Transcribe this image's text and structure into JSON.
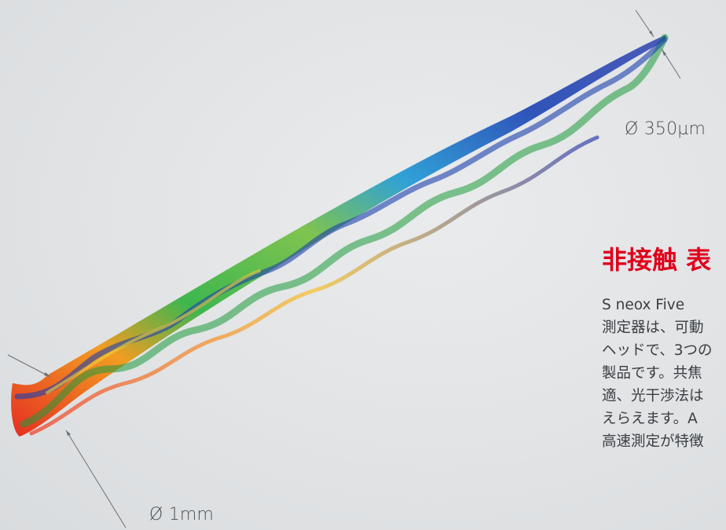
{
  "image": {
    "subject": "drill-bit-3d-surface-height-map",
    "colors": {
      "background": "#e1e3e5",
      "heading": "#e0001b",
      "map_high": "#e5281c",
      "map_mid": "#2fb64a",
      "map_low": "#2a3fb4"
    }
  },
  "annotations": {
    "tip_diameter": "Ø 350µm",
    "shank_diameter": "Ø 1mm"
  },
  "article": {
    "heading": "非接触 表",
    "lines": [
      "S neox Five",
      "測定器は、可動",
      "ヘッドで、3つの",
      "製品です。共焦",
      "適、光干渉法は",
      "えらえます。A",
      "高速測定が特徴"
    ]
  }
}
